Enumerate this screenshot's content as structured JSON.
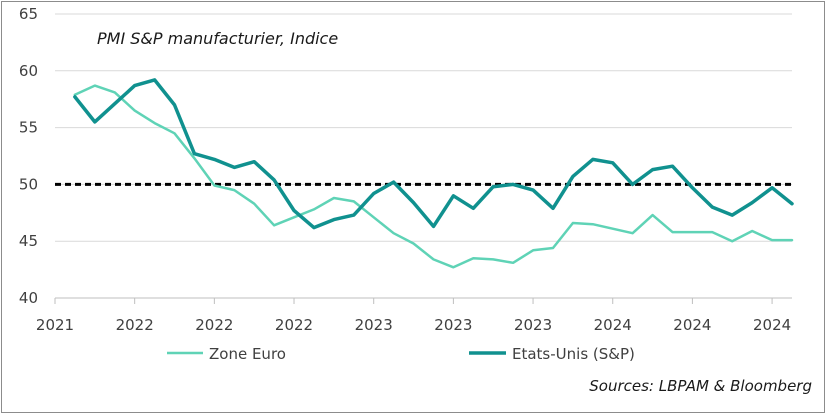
{
  "chart_data": {
    "type": "line",
    "title": "PMI S&P manufacturier, Indice",
    "source": "Sources: LBPAM & Bloomberg",
    "ylim": [
      40,
      65
    ],
    "yticks": [
      40,
      45,
      50,
      55,
      60,
      65
    ],
    "xlim": [
      0,
      37
    ],
    "xticks": [
      {
        "pos": 0,
        "label": "2021"
      },
      {
        "pos": 4,
        "label": "2022"
      },
      {
        "pos": 8,
        "label": "2022"
      },
      {
        "pos": 12,
        "label": "2022"
      },
      {
        "pos": 16,
        "label": "2023"
      },
      {
        "pos": 20,
        "label": "2023"
      },
      {
        "pos": 24,
        "label": "2023"
      },
      {
        "pos": 28,
        "label": "2024"
      },
      {
        "pos": 32,
        "label": "2024"
      },
      {
        "pos": 36,
        "label": "2024"
      }
    ],
    "reference_line": 50,
    "series": [
      {
        "name": "Zone Euro",
        "color": "#5fd3b6",
        "x": [
          1,
          2,
          3,
          4,
          5,
          6,
          7,
          8,
          9,
          10,
          11,
          12,
          13,
          14,
          15,
          16,
          17,
          18,
          19,
          20,
          21,
          22,
          23,
          24,
          25,
          26,
          27,
          28,
          29,
          30,
          31,
          32,
          33,
          34,
          35,
          36,
          37
        ],
        "values": [
          57.9,
          58.7,
          58.1,
          56.5,
          55.4,
          54.5,
          52.3,
          49.9,
          49.5,
          48.3,
          46.4,
          47.1,
          47.8,
          48.8,
          48.5,
          47.1,
          45.7,
          44.8,
          43.4,
          42.7,
          43.5,
          43.4,
          43.1,
          44.2,
          44.4,
          46.6,
          46.5,
          46.1,
          45.7,
          47.3,
          45.8,
          45.8,
          45.8,
          45.0,
          45.9,
          45.1,
          45.1
        ]
      },
      {
        "name": "Etats-Unis (S&P)",
        "color": "#10918f",
        "x": [
          1,
          2,
          3,
          4,
          5,
          6,
          7,
          8,
          9,
          10,
          11,
          12,
          13,
          14,
          15,
          16,
          17,
          18,
          19,
          20,
          21,
          22,
          23,
          24,
          25,
          26,
          27,
          28,
          29,
          30,
          31,
          32,
          33,
          34,
          35,
          36,
          37
        ],
        "values": [
          57.7,
          55.5,
          57.1,
          58.7,
          59.2,
          57.0,
          52.7,
          52.2,
          51.5,
          52.0,
          50.4,
          47.7,
          46.2,
          46.9,
          47.3,
          49.2,
          50.2,
          48.4,
          46.3,
          49.0,
          47.9,
          49.8,
          50.0,
          49.5,
          47.9,
          50.7,
          52.2,
          51.9,
          50.0,
          51.3,
          51.6,
          49.7,
          48.0,
          47.3,
          48.4,
          49.7,
          48.3
        ]
      }
    ]
  }
}
